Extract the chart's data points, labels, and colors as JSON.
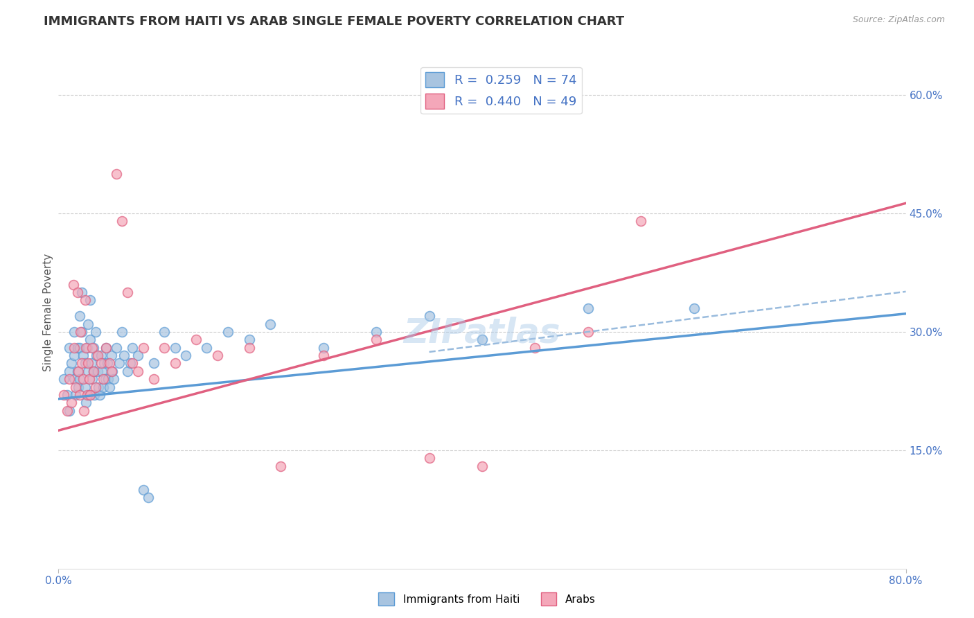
{
  "title": "IMMIGRANTS FROM HAITI VS ARAB SINGLE FEMALE POVERTY CORRELATION CHART",
  "source": "Source: ZipAtlas.com",
  "ylabel": "Single Female Poverty",
  "xlim": [
    0.0,
    0.8
  ],
  "ylim": [
    0.0,
    0.65
  ],
  "y_ticks_right": [
    0.15,
    0.3,
    0.45,
    0.6
  ],
  "y_tick_labels_right": [
    "15.0%",
    "30.0%",
    "45.0%",
    "60.0%"
  ],
  "legend_r1": "R =  0.259   N = 74",
  "legend_r2": "R =  0.440   N = 49",
  "color_haiti_fill": "#a8c4e0",
  "color_haiti_edge": "#5b9bd5",
  "color_arab_fill": "#f4a7b9",
  "color_arab_edge": "#e06080",
  "color_haiti_line": "#5b9bd5",
  "color_arab_line": "#e06080",
  "color_dashed": "#99bbdd",
  "watermark": "ZIPatlas",
  "haiti_intercept": 0.215,
  "haiti_slope": 0.135,
  "arab_intercept": 0.175,
  "arab_slope": 0.36,
  "dash_intercept": 0.215,
  "dash_slope": 0.17,
  "haiti_x": [
    0.005,
    0.008,
    0.01,
    0.01,
    0.01,
    0.012,
    0.015,
    0.015,
    0.015,
    0.016,
    0.018,
    0.018,
    0.019,
    0.02,
    0.02,
    0.02,
    0.022,
    0.022,
    0.023,
    0.025,
    0.025,
    0.026,
    0.027,
    0.028,
    0.028,
    0.029,
    0.03,
    0.03,
    0.031,
    0.032,
    0.033,
    0.033,
    0.034,
    0.035,
    0.036,
    0.037,
    0.038,
    0.039,
    0.04,
    0.041,
    0.042,
    0.043,
    0.044,
    0.045,
    0.046,
    0.047,
    0.048,
    0.05,
    0.051,
    0.052,
    0.055,
    0.057,
    0.06,
    0.062,
    0.065,
    0.068,
    0.07,
    0.075,
    0.08,
    0.085,
    0.09,
    0.1,
    0.11,
    0.12,
    0.14,
    0.16,
    0.18,
    0.2,
    0.25,
    0.3,
    0.35,
    0.4,
    0.5,
    0.6
  ],
  "haiti_y": [
    0.24,
    0.22,
    0.28,
    0.25,
    0.2,
    0.26,
    0.3,
    0.27,
    0.24,
    0.22,
    0.28,
    0.25,
    0.23,
    0.32,
    0.28,
    0.24,
    0.35,
    0.3,
    0.27,
    0.26,
    0.23,
    0.21,
    0.28,
    0.31,
    0.25,
    0.22,
    0.34,
    0.29,
    0.26,
    0.24,
    0.28,
    0.25,
    0.22,
    0.3,
    0.27,
    0.25,
    0.23,
    0.22,
    0.27,
    0.25,
    0.23,
    0.26,
    0.24,
    0.28,
    0.26,
    0.24,
    0.23,
    0.27,
    0.25,
    0.24,
    0.28,
    0.26,
    0.3,
    0.27,
    0.25,
    0.26,
    0.28,
    0.27,
    0.1,
    0.09,
    0.26,
    0.3,
    0.28,
    0.27,
    0.28,
    0.3,
    0.29,
    0.31,
    0.28,
    0.3,
    0.32,
    0.29,
    0.33,
    0.33
  ],
  "arab_x": [
    0.005,
    0.008,
    0.01,
    0.012,
    0.014,
    0.015,
    0.016,
    0.018,
    0.019,
    0.02,
    0.021,
    0.022,
    0.023,
    0.024,
    0.025,
    0.026,
    0.027,
    0.028,
    0.029,
    0.03,
    0.032,
    0.033,
    0.035,
    0.037,
    0.04,
    0.042,
    0.045,
    0.048,
    0.05,
    0.055,
    0.06,
    0.065,
    0.07,
    0.075,
    0.08,
    0.09,
    0.1,
    0.11,
    0.13,
    0.15,
    0.18,
    0.21,
    0.25,
    0.3,
    0.35,
    0.4,
    0.45,
    0.5,
    0.55
  ],
  "arab_y": [
    0.22,
    0.2,
    0.24,
    0.21,
    0.36,
    0.28,
    0.23,
    0.35,
    0.25,
    0.22,
    0.3,
    0.26,
    0.24,
    0.2,
    0.34,
    0.28,
    0.22,
    0.26,
    0.24,
    0.22,
    0.28,
    0.25,
    0.23,
    0.27,
    0.26,
    0.24,
    0.28,
    0.26,
    0.25,
    0.5,
    0.44,
    0.35,
    0.26,
    0.25,
    0.28,
    0.24,
    0.28,
    0.26,
    0.29,
    0.27,
    0.28,
    0.13,
    0.27,
    0.29,
    0.14,
    0.13,
    0.28,
    0.3,
    0.44
  ]
}
